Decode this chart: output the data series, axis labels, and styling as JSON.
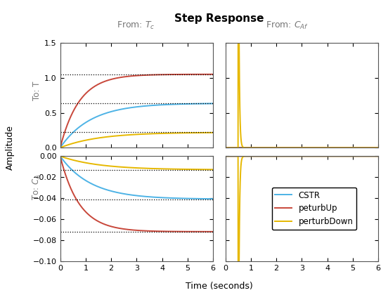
{
  "title": "Step Response",
  "xlabel": "Time (seconds)",
  "ylabel": "Amplitude",
  "legend_labels": [
    "CSTR",
    "peturbUp",
    "perturbDown"
  ],
  "colors": {
    "CSTR": "#4db3e6",
    "peturbUp": "#c8473a",
    "perturbDown": "#e6b800"
  },
  "tc_T": {
    "CSTR_ss": 0.636,
    "peturbUp_ss": 1.05,
    "perturbDown_ss": 0.22,
    "tau_CSTR": 1.2,
    "tau_peturbUp": 0.75,
    "tau_perturbDown": 1.5
  },
  "tc_CA": {
    "CSTR_ss": -0.041,
    "peturbUp_ss": -0.072,
    "perturbDown_ss": -0.013,
    "tau_CSTR": 1.2,
    "tau_peturbUp": 0.75,
    "tau_perturbDown": 1.5
  },
  "spike_time": 0.5,
  "caf_T_perturbDown_peak": 1.5,
  "caf_CA_perturbDown_peak": -0.1,
  "background": "#ffffff"
}
